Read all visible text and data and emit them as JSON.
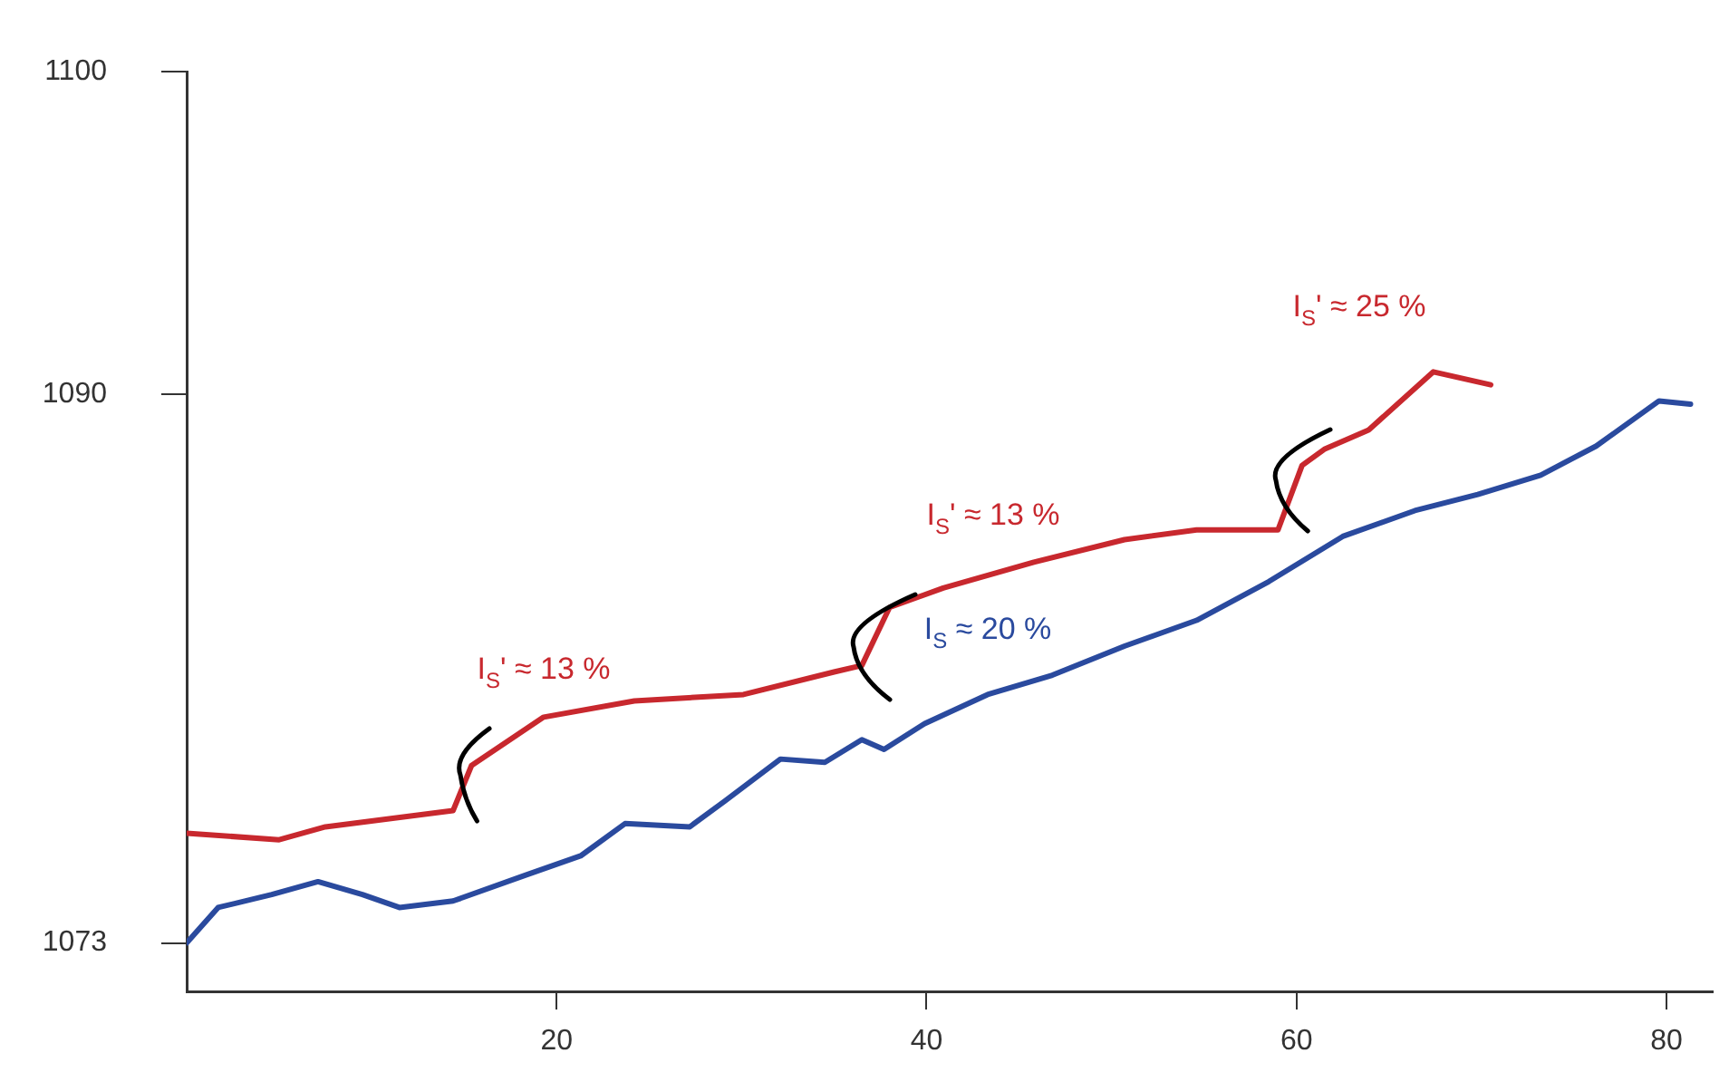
{
  "chart_data": {
    "type": "line",
    "xlim": [
      0,
      82.5
    ],
    "ylim": [
      1071.5,
      1100
    ],
    "xticks": [
      20,
      40,
      60,
      80
    ],
    "yticks": [
      1073,
      1090,
      1100
    ],
    "grid": false,
    "legend": false,
    "marker": "none",
    "line_style": "solid",
    "series": [
      {
        "color": "#c8282e",
        "x": [
          0,
          5,
          7.5,
          14.4,
          15.4,
          19.3,
          24.2,
          30.1,
          35,
          36.5,
          38,
          40.9,
          45.8,
          50.7,
          54.6,
          59,
          60.3,
          61.5,
          63.9,
          67.4,
          70.5
        ],
        "values": [
          1076.4,
          1076.2,
          1076.6,
          1077.1,
          1078.5,
          1080.0,
          1080.5,
          1080.7,
          1081.4,
          1081.6,
          1083.4,
          1084.0,
          1084.8,
          1085.5,
          1085.8,
          1085.8,
          1087.8,
          1088.3,
          1088.9,
          1090.7,
          1090.3
        ]
      },
      {
        "color": "#2a4a9e",
        "x": [
          0,
          1.7,
          4.6,
          7.1,
          9.5,
          11.5,
          14.4,
          18.3,
          21.3,
          23.7,
          27.2,
          29.1,
          32.1,
          34.5,
          36.5,
          37.7,
          39.9,
          43.3,
          46.8,
          50.7,
          54.6,
          58.5,
          62.5,
          66.4,
          69.8,
          73.2,
          76.2,
          79.6,
          81.3
        ],
        "values": [
          1073,
          1074.1,
          1074.5,
          1074.9,
          1074.5,
          1074.1,
          1074.3,
          1075.1,
          1075.7,
          1076.7,
          1076.6,
          1077.4,
          1078.7,
          1078.6,
          1079.3,
          1079.0,
          1079.8,
          1080.7,
          1081.3,
          1082.2,
          1083.0,
          1084.2,
          1085.6,
          1086.4,
          1086.9,
          1087.5,
          1088.4,
          1089.8,
          1089.7
        ]
      }
    ],
    "annotations": [
      "I$_{S}$' ≈ 13 %",
      "I$_{S}$' ≈ 13 %",
      "I$_{S}$' ≈ 25 %",
      "I$_{S}$ ≈ 20 %"
    ]
  }
}
